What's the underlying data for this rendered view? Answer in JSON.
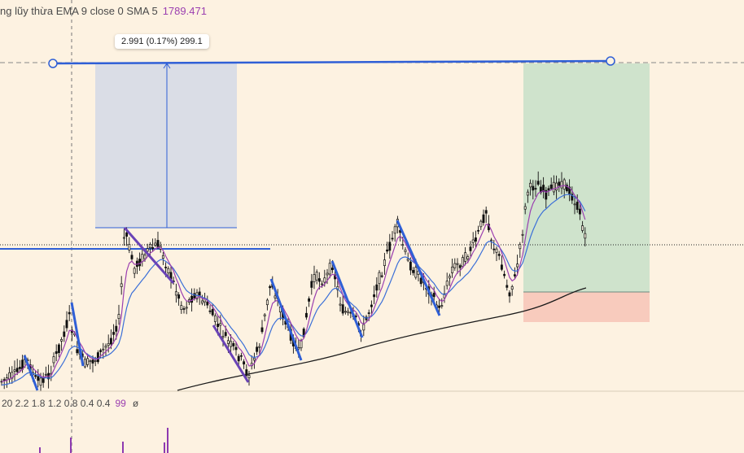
{
  "legend": {
    "indicator_text": "ng lũy thừa EMA 9 close 0 SMA 5",
    "indicator_value": "1789.471",
    "volume_text": "20 2.2 1.8 1.2 0.8 0.4 0.4",
    "volume_value": "99",
    "volume_extra": "ø"
  },
  "measure": {
    "label": "2.991 (0.17%) 299.1"
  },
  "colors": {
    "background": "#fdf2e1",
    "candle": "#111111",
    "ema_fast": "#9b3fb0",
    "ema_slow": "#3b6fd8",
    "long_ma": "#1a1a1a",
    "trend_line": "#2f5fd6",
    "zigzag_down": "#6a43b6",
    "zone_measure": "#dadde6",
    "zone_profit": "#cfe3cc",
    "zone_loss": "#f8cbbd",
    "volume_bar": "#8e3ab0"
  },
  "chart_data": {
    "type": "candlestick",
    "series": [
      {
        "name": "EMA 9",
        "style": "line"
      },
      {
        "name": "SMA 5",
        "style": "line"
      }
    ],
    "annotations": [
      "measure-zone",
      "long-position-zone",
      "horizontal-lines",
      "zigzag-swings"
    ]
  }
}
